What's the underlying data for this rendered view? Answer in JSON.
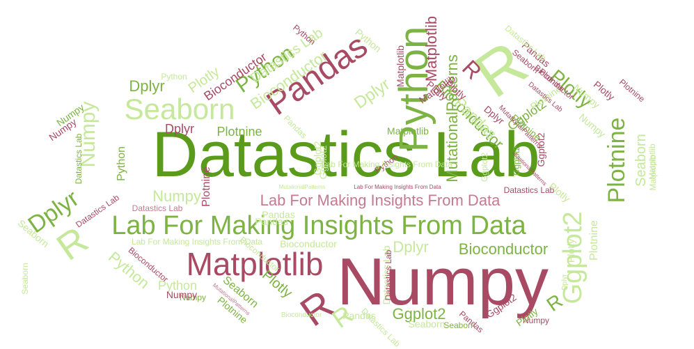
{
  "colors": {
    "dark_green": "#5a9b1c",
    "green": "#7cb342",
    "light_green": "#c5e89a",
    "maroon": "#a84a63",
    "pink": "#c47a90"
  },
  "words": [
    {
      "text": "Datastics Lab",
      "color": "dark_green"
    },
    {
      "text": "Numpy",
      "color": "maroon"
    },
    {
      "text": "Lab For Making Insights From Data",
      "color": "green"
    },
    {
      "text": "Matplotlib",
      "color": "maroon"
    },
    {
      "text": "Python",
      "color": "green"
    },
    {
      "text": "Pandas",
      "color": "maroon"
    },
    {
      "text": "Seaborn",
      "color": "light_green"
    },
    {
      "text": "R",
      "color": "light_green"
    },
    {
      "text": "Plotnine",
      "color": "green"
    },
    {
      "text": "Ggplot2",
      "color": "light_green"
    },
    {
      "text": "Lab For Making Insights From Data",
      "color": "pink"
    },
    {
      "text": "Bioconductor",
      "color": "green"
    },
    {
      "text": "MutationalPatterns",
      "color": "green"
    },
    {
      "text": "R",
      "color": "light_green"
    },
    {
      "text": "R",
      "color": "maroon"
    },
    {
      "text": "R",
      "color": "light_green"
    },
    {
      "text": "Dplyr",
      "color": "green"
    },
    {
      "text": "Numpy",
      "color": "light_green"
    },
    {
      "text": "Numpy",
      "color": "light_green"
    },
    {
      "text": "Plotly",
      "color": "green"
    },
    {
      "text": "Python",
      "color": "green"
    },
    {
      "text": "Bioconductor",
      "color": "light_green"
    },
    {
      "text": "Dplyr",
      "color": "light_green"
    },
    {
      "text": "Matplotlib",
      "color": "maroon"
    },
    {
      "text": "Datastics Lab",
      "color": "light_green"
    },
    {
      "text": "Plotly",
      "color": "light_green"
    },
    {
      "text": "Ggplot2",
      "color": "green"
    },
    {
      "text": "Ggplot2",
      "color": "maroon"
    },
    {
      "text": "Bioconductor",
      "color": "green"
    },
    {
      "text": "Dplyr",
      "color": "light_green"
    },
    {
      "text": "Python",
      "color": "light_green"
    },
    {
      "text": "Python",
      "color": "light_green"
    },
    {
      "text": "Seaborn",
      "color": "light_green"
    },
    {
      "text": "R",
      "color": "green"
    },
    {
      "text": "Plotnine",
      "color": "light_green"
    },
    {
      "text": "Plotly",
      "color": "green"
    },
    {
      "text": "Dplyr",
      "color": "green"
    },
    {
      "text": "Dplyr",
      "color": "maroon"
    },
    {
      "text": "Plotnine",
      "color": "green"
    },
    {
      "text": "Pandas",
      "color": "light_green"
    },
    {
      "text": "Bioconductor",
      "color": "maroon"
    },
    {
      "text": "Plotly",
      "color": "light_green"
    },
    {
      "text": "Python",
      "color": "green"
    },
    {
      "text": "Ggplot2",
      "color": "green"
    },
    {
      "text": "Seaborn",
      "color": "green"
    },
    {
      "text": "Seaborn",
      "color": "light_green"
    },
    {
      "text": "Pandas",
      "color": "light_green"
    },
    {
      "text": "Pandas",
      "color": "maroon"
    },
    {
      "text": "Numpy",
      "color": "maroon"
    },
    {
      "text": "Numpy",
      "color": "green"
    },
    {
      "text": "Plotly",
      "color": "maroon"
    },
    {
      "text": "Plotnine",
      "color": "maroon"
    },
    {
      "text": "Plotnine",
      "color": "maroon"
    },
    {
      "text": "Plotnine",
      "color": "green"
    },
    {
      "text": "Python",
      "color": "maroon"
    },
    {
      "text": "Matplotlib",
      "color": "green"
    },
    {
      "text": "Matplotlib",
      "color": "maroon"
    },
    {
      "text": "Matplotlib",
      "color": "maroon"
    },
    {
      "text": "Matplotlib",
      "color": "light_green"
    },
    {
      "text": "Matplotlib",
      "color": "light_green"
    },
    {
      "text": "Python",
      "color": "light_green"
    },
    {
      "text": "Datastics Lab",
      "color": "maroon"
    },
    {
      "text": "Datastics Lab",
      "color": "light_green"
    },
    {
      "text": "Datastics Lab",
      "color": "green"
    },
    {
      "text": "Datastics Lab",
      "color": "maroon"
    },
    {
      "text": "Datastics Lab",
      "color": "pink"
    },
    {
      "text": "Datastics Lab",
      "color": "maroon"
    },
    {
      "text": "Lab For Making Insights From Data",
      "color": "light_green"
    },
    {
      "text": "Lab For Making Insights From Data",
      "color": "light_green"
    },
    {
      "text": "Lab For Making Insights From Data",
      "color": "maroon"
    },
    {
      "text": "MutationalPatterns",
      "color": "light_green"
    },
    {
      "text": "MutationalPatterns",
      "color": "maroon"
    },
    {
      "text": "MutationalPatterns",
      "color": "maroon"
    },
    {
      "text": "MutationalPatterns",
      "color": "pink"
    },
    {
      "text": "Dplyr",
      "color": "light_green"
    },
    {
      "text": "Bioconductor",
      "color": "light_green"
    },
    {
      "text": "Bioconductor",
      "color": "light_green"
    },
    {
      "text": "Bioconductor",
      "color": "maroon"
    },
    {
      "text": "Bioconductor",
      "color": "light_green"
    },
    {
      "text": "Seaborn",
      "color": "maroon"
    },
    {
      "text": "Seaborn",
      "color": "light_green"
    },
    {
      "text": "Seaborn",
      "color": "light_green"
    },
    {
      "text": "Pandas",
      "color": "maroon"
    },
    {
      "text": "Pandas",
      "color": "light_green"
    },
    {
      "text": "Pandas",
      "color": "light_green"
    },
    {
      "text": "Pandas",
      "color": "light_green"
    },
    {
      "text": "Numpy",
      "color": "light_green"
    },
    {
      "text": "Numpy",
      "color": "maroon"
    },
    {
      "text": "Numpy",
      "color": "light_green"
    },
    {
      "text": "Numpy",
      "color": "green"
    },
    {
      "text": "Numpy",
      "color": "maroon"
    },
    {
      "text": "Ggplot2",
      "color": "maroon"
    },
    {
      "text": "Ggplot2",
      "color": "light_green"
    },
    {
      "text": "Ggplot2",
      "color": "light_green"
    },
    {
      "text": "Ggplot2",
      "color": "green"
    },
    {
      "text": "Ggplot2",
      "color": "light_green"
    },
    {
      "text": "Plotly",
      "color": "green"
    },
    {
      "text": "Plotly",
      "color": "light_green"
    },
    {
      "text": "Plotly",
      "color": "maroon"
    },
    {
      "text": "Plotly",
      "color": "maroon"
    },
    {
      "text": "Plotnine",
      "color": "light_green"
    },
    {
      "text": "Plotnine",
      "color": "green"
    },
    {
      "text": "Dplyr",
      "color": "maroon"
    },
    {
      "text": "R",
      "color": "maroon"
    },
    {
      "text": "Python",
      "color": "maroon"
    },
    {
      "text": "Datastics Lab",
      "color": "maroon"
    },
    {
      "text": "Bioconductor",
      "color": "maroon"
    },
    {
      "text": "Seaborn",
      "color": "green"
    },
    {
      "text": "Datastics Lab",
      "color": "light_green"
    },
    {
      "text": "Python",
      "color": "light_green"
    },
    {
      "text": "Plotnine",
      "color": "maroon"
    },
    {
      "text": "Datastics Lab",
      "color": "light_green"
    }
  ]
}
